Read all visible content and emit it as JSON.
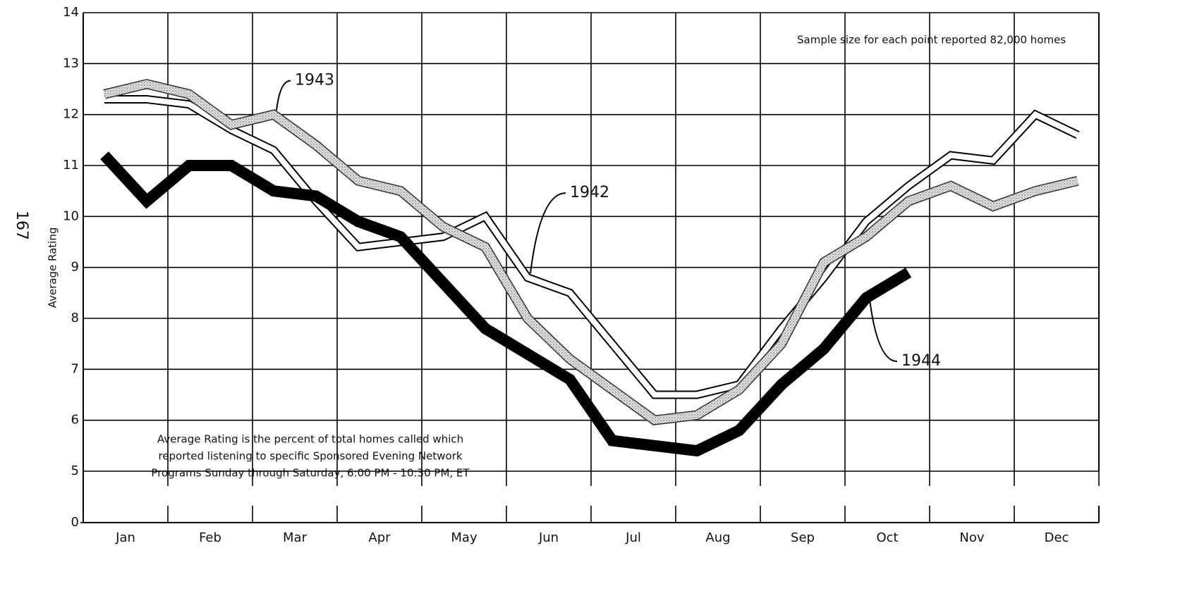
{
  "chart_data": {
    "type": "line",
    "page_number": "167",
    "y_label": "Average Rating",
    "annotations": [
      "Sample size for each point reported 82,000 homes",
      "Average Rating is the percent of total homes called which",
      "reported listening to specific Sponsored Evening Network",
      "Programs Sunday through Saturday, 6:00 PM - 10:30 PM, ET"
    ],
    "categories": [
      "Jan",
      null,
      "Feb",
      null,
      "Mar",
      null,
      "Apr",
      null,
      "May",
      null,
      "Jun",
      null,
      "Jul",
      null,
      "Aug",
      null,
      "Sep",
      null,
      "Oct",
      null,
      "Nov",
      null,
      "Dec",
      null
    ],
    "series": [
      {
        "name": "1942",
        "color": "#ffffff",
        "values": [
          12.3,
          12.3,
          12.2,
          11.7,
          11.3,
          10.3,
          9.4,
          9.5,
          9.6,
          10.0,
          8.8,
          8.5,
          7.5,
          6.5,
          6.5,
          6.7,
          7.8,
          8.8,
          9.9,
          10.6,
          11.2,
          11.1,
          12.0,
          11.6
        ]
      },
      {
        "name": "1943",
        "color": "#bdbdbd",
        "values": [
          12.4,
          12.6,
          12.4,
          11.8,
          12.0,
          11.4,
          10.7,
          10.5,
          9.8,
          9.4,
          8.0,
          7.2,
          6.6,
          6.0,
          6.1,
          6.6,
          7.5,
          9.1,
          9.6,
          10.3,
          10.6,
          10.2,
          10.5,
          10.7
        ]
      },
      {
        "name": "1944",
        "color": "#000000",
        "values": [
          11.2,
          10.3,
          11.0,
          11.0,
          10.5,
          10.4,
          9.9,
          9.6,
          8.7,
          7.8,
          7.3,
          6.8,
          5.6,
          5.5,
          5.4,
          5.8,
          6.7,
          7.4,
          8.4,
          8.9,
          null,
          null,
          null,
          null
        ]
      }
    ],
    "ylim": [
      0,
      14
    ],
    "y_axis_break": [
      0,
      5
    ],
    "yticks": [
      0,
      5,
      6,
      7,
      8,
      9,
      10,
      11,
      12,
      13,
      14
    ],
    "grid": true
  }
}
